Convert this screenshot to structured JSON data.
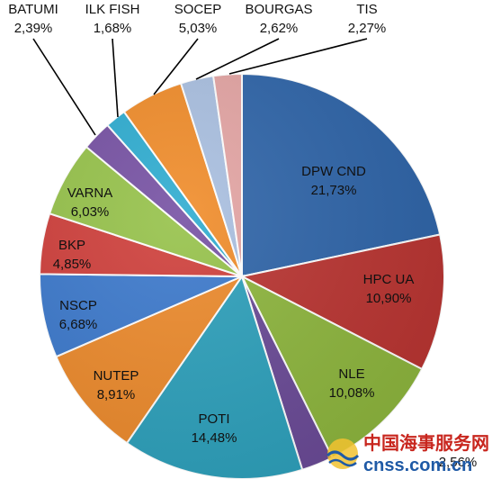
{
  "chart_data": {
    "type": "pie",
    "slices": [
      {
        "label": "DPW CND",
        "value_text": "21,73%",
        "value": 21.73,
        "color": "#2e64a8",
        "dark": "#23508a"
      },
      {
        "label": "HPC UA",
        "value_text": "10,90%",
        "value": 10.9,
        "color": "#b93431",
        "dark": "#952523"
      },
      {
        "label": "NLE",
        "value_text": "10,08%",
        "value": 10.08,
        "color": "#8db53d",
        "dark": "#6f942a"
      },
      {
        "label": "",
        "value_text": "2,56%",
        "value": 2.56,
        "color": "#6a4a96",
        "dark": "#53377a"
      },
      {
        "label": "POTI",
        "value_text": "14,48%",
        "value": 14.48,
        "color": "#2da0bb",
        "dark": "#1f8198"
      },
      {
        "label": "NUTEP",
        "value_text": "8,91%",
        "value": 8.91,
        "color": "#ec8a2c",
        "dark": "#c56d19"
      },
      {
        "label": "NSCP",
        "value_text": "6,68%",
        "value": 6.68,
        "color": "#3c79cc",
        "dark": "#2c5fa8"
      },
      {
        "label": "BKP",
        "value_text": "4,85%",
        "value": 4.85,
        "color": "#cf3f3b",
        "dark": "#a92e2b"
      },
      {
        "label": "VARNA",
        "value_text": "6,03%",
        "value": 6.03,
        "color": "#96c24a",
        "dark": "#789f35"
      },
      {
        "label": "BATUMI",
        "value_text": "2,39%",
        "value": 2.39,
        "color": "#7651a3",
        "dark": "#5b3c84"
      },
      {
        "label": "ILK FISH",
        "value_text": "1,68%",
        "value": 1.68,
        "color": "#2eacd0",
        "dark": "#208aa8"
      },
      {
        "label": "SOCEP",
        "value_text": "5,03%",
        "value": 5.03,
        "color": "#f08c2a",
        "dark": "#c96f17"
      },
      {
        "label": "BOURGAS",
        "value_text": "2,62%",
        "value": 2.62,
        "color": "#a9bfe0",
        "dark": "#8aa2c6"
      },
      {
        "label": "TIS",
        "value_text": "2,27%",
        "value": 2.27,
        "color": "#e3a4a3",
        "dark": "#c78685"
      }
    ],
    "title": "",
    "legend": "none"
  },
  "watermark": {
    "cn": "中国海事服务网",
    "en": "cnss.com.cn"
  }
}
